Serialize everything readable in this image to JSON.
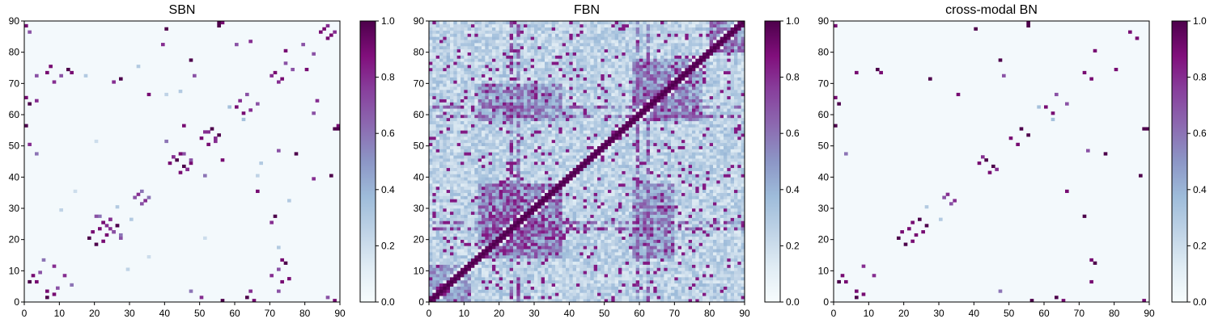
{
  "figure": {
    "colormap": "BuPu",
    "colorbar": {
      "min": 0.0,
      "max": 1.0,
      "ticks": [
        0.0,
        0.2,
        0.4,
        0.6,
        0.8,
        1.0
      ],
      "tick_labels": [
        "0.0",
        "0.2",
        "0.4",
        "0.6",
        "0.8",
        "1.0"
      ],
      "colors": [
        "#f7fcfd",
        "#e0ecf4",
        "#bfd3e6",
        "#9ebcda",
        "#8c96c6",
        "#8c6bb1",
        "#88419d",
        "#810f7c",
        "#4d004b"
      ]
    }
  },
  "chart_data": [
    {
      "type": "heatmap",
      "title": "SBN",
      "xlabel": "",
      "ylabel": "",
      "xlim": [
        0,
        90
      ],
      "ylim": [
        0,
        90
      ],
      "x_ticks": [
        0,
        10,
        20,
        30,
        40,
        50,
        60,
        70,
        80,
        90
      ],
      "x_tick_labels": [
        "0",
        "10",
        "20",
        "30",
        "40",
        "50",
        "60",
        "70",
        "80",
        "90"
      ],
      "y_ticks": [
        0,
        10,
        20,
        30,
        40,
        50,
        60,
        70,
        80,
        90
      ],
      "y_tick_labels": [
        "0",
        "10",
        "20",
        "30",
        "40",
        "50",
        "60",
        "70",
        "80",
        "90"
      ],
      "matrix_size": 90,
      "background_value": 0.02,
      "cells": [
        [
          6,
          1,
          1.0
        ],
        [
          6,
          3,
          0.9
        ],
        [
          8,
          2,
          0.9
        ],
        [
          9,
          4,
          0.7
        ],
        [
          1,
          6,
          1.0
        ],
        [
          3,
          6,
          0.9
        ],
        [
          2,
          8,
          0.9
        ],
        [
          4,
          9,
          0.7
        ],
        [
          11,
          8,
          0.8
        ],
        [
          13,
          5,
          0.6
        ],
        [
          8,
          11,
          0.8
        ],
        [
          5,
          13,
          0.6
        ],
        [
          20,
          18,
          1.0
        ],
        [
          22,
          19,
          0.9
        ],
        [
          23,
          21,
          0.9
        ],
        [
          24,
          23,
          0.8
        ],
        [
          25,
          22,
          0.9
        ],
        [
          26,
          24,
          0.8
        ],
        [
          27,
          20,
          0.7
        ],
        [
          24,
          26,
          1.0
        ],
        [
          22,
          25,
          0.7
        ],
        [
          21,
          27,
          0.6
        ],
        [
          18,
          20,
          1.0
        ],
        [
          19,
          22,
          0.9
        ],
        [
          21,
          23,
          0.9
        ],
        [
          23,
          24,
          0.8
        ],
        [
          22,
          25,
          0.9
        ],
        [
          24,
          26,
          0.8
        ],
        [
          20,
          27,
          0.7
        ],
        [
          26,
          24,
          1.0
        ],
        [
          25,
          22,
          0.7
        ],
        [
          27,
          21,
          0.6
        ],
        [
          33,
          31,
          0.7
        ],
        [
          34,
          32,
          0.8
        ],
        [
          35,
          33,
          0.6
        ],
        [
          31,
          33,
          0.7
        ],
        [
          32,
          34,
          0.8
        ],
        [
          33,
          35,
          0.6
        ],
        [
          41,
          44,
          0.9
        ],
        [
          42,
          46,
          0.8
        ],
        [
          43,
          45,
          1.0
        ],
        [
          45,
          47,
          0.7
        ],
        [
          46,
          42,
          0.8
        ],
        [
          47,
          44,
          0.9
        ],
        [
          44,
          41,
          0.9
        ],
        [
          46,
          42,
          0.8
        ],
        [
          45,
          43,
          1.0
        ],
        [
          47,
          45,
          0.7
        ],
        [
          42,
          46,
          0.8
        ],
        [
          44,
          47,
          0.9
        ],
        [
          50,
          52,
          0.9
        ],
        [
          52,
          54,
          0.8
        ],
        [
          53,
          55,
          1.0
        ],
        [
          54,
          51,
          0.8
        ],
        [
          52,
          50,
          0.9
        ],
        [
          54,
          52,
          0.8
        ],
        [
          55,
          53,
          1.0
        ],
        [
          51,
          54,
          0.8
        ],
        [
          60,
          62,
          0.9
        ],
        [
          61,
          64,
          0.8
        ],
        [
          62,
          60,
          0.9
        ],
        [
          64,
          61,
          0.8
        ],
        [
          63,
          66,
          0.7
        ],
        [
          66,
          63,
          0.7
        ],
        [
          71,
          73,
          0.9
        ],
        [
          72,
          70,
          0.8
        ],
        [
          73,
          71,
          0.9
        ],
        [
          70,
          72,
          0.8
        ],
        [
          74,
          76,
          0.7
        ],
        [
          76,
          74,
          0.7
        ],
        [
          84,
          86,
          0.9
        ],
        [
          86,
          88,
          0.8
        ],
        [
          87,
          85,
          0.9
        ],
        [
          86,
          84,
          0.9
        ],
        [
          88,
          86,
          0.8
        ],
        [
          85,
          87,
          0.9
        ],
        [
          0,
          56,
          1.0
        ],
        [
          56,
          0,
          1.0
        ],
        [
          0,
          65,
          0.9
        ],
        [
          65,
          0,
          0.9
        ],
        [
          1,
          50,
          0.8
        ],
        [
          50,
          1,
          0.8
        ],
        [
          3,
          72,
          0.7
        ],
        [
          72,
          3,
          0.7
        ],
        [
          6,
          73,
          0.9
        ],
        [
          73,
          6,
          0.9
        ],
        [
          10,
          72,
          0.7
        ],
        [
          72,
          10,
          0.7
        ],
        [
          13,
          73,
          0.9
        ],
        [
          73,
          13,
          0.9
        ],
        [
          27,
          71,
          1.0
        ],
        [
          71,
          27,
          1.0
        ],
        [
          25,
          70,
          0.8
        ],
        [
          70,
          25,
          0.8
        ],
        [
          35,
          66,
          0.9
        ],
        [
          66,
          35,
          0.9
        ],
        [
          40,
          87,
          1.0
        ],
        [
          87,
          40,
          1.0
        ],
        [
          39,
          82,
          0.8
        ],
        [
          82,
          39,
          0.8
        ],
        [
          45,
          56,
          0.9
        ],
        [
          56,
          45,
          0.9
        ],
        [
          55,
          88,
          1.0
        ],
        [
          88,
          55,
          1.0
        ],
        [
          56,
          89,
          0.9
        ],
        [
          89,
          56,
          0.9
        ],
        [
          60,
          82,
          0.7
        ],
        [
          82,
          60,
          0.7
        ],
        [
          63,
          1,
          1.0
        ],
        [
          1,
          63,
          1.0
        ],
        [
          64,
          3,
          0.8
        ],
        [
          3,
          64,
          0.8
        ],
        [
          70,
          8,
          0.8
        ],
        [
          8,
          70,
          0.8
        ],
        [
          74,
          12,
          1.0
        ],
        [
          12,
          74,
          1.0
        ],
        [
          75,
          7,
          0.9
        ],
        [
          7,
          75,
          0.9
        ],
        [
          77,
          47,
          1.0
        ],
        [
          47,
          77,
          1.0
        ],
        [
          80,
          74,
          0.9
        ],
        [
          74,
          80,
          0.9
        ],
        [
          82,
          79,
          0.7
        ],
        [
          79,
          82,
          0.7
        ],
        [
          83,
          64,
          0.8
        ],
        [
          64,
          83,
          0.8
        ],
        [
          86,
          1,
          0.7
        ],
        [
          1,
          86,
          0.7
        ],
        [
          88,
          0,
          0.9
        ],
        [
          0,
          88,
          0.9
        ],
        [
          89,
          55,
          1.0
        ],
        [
          55,
          89,
          1.0
        ],
        [
          47,
          3,
          0.6
        ],
        [
          3,
          47,
          0.6
        ],
        [
          48,
          72,
          0.7
        ],
        [
          72,
          48,
          0.7
        ],
        [
          51,
          40,
          0.6
        ],
        [
          40,
          51,
          0.6
        ],
        [
          26,
          30,
          0.3
        ],
        [
          30,
          26,
          0.3
        ],
        [
          14,
          35,
          0.2
        ],
        [
          35,
          14,
          0.2
        ],
        [
          58,
          62,
          0.35
        ],
        [
          62,
          58,
          0.35
        ],
        [
          17,
          72,
          0.3
        ],
        [
          72,
          17,
          0.3
        ],
        [
          40,
          66,
          0.25
        ],
        [
          66,
          40,
          0.25
        ],
        [
          75,
          32,
          0.3
        ],
        [
          32,
          75,
          0.3
        ],
        [
          10,
          29,
          0.25
        ],
        [
          29,
          10,
          0.25
        ],
        [
          20,
          51,
          0.2
        ],
        [
          51,
          20,
          0.2
        ],
        [
          67,
          44,
          0.3
        ],
        [
          44,
          67,
          0.3
        ]
      ]
    },
    {
      "type": "heatmap",
      "title": "FBN",
      "xlabel": "",
      "ylabel": "",
      "xlim": [
        0,
        90
      ],
      "ylim": [
        0,
        90
      ],
      "x_ticks": [
        0,
        10,
        20,
        30,
        40,
        50,
        60,
        70,
        80,
        90
      ],
      "x_tick_labels": [
        "0",
        "10",
        "20",
        "30",
        "40",
        "50",
        "60",
        "70",
        "80",
        "90"
      ],
      "y_ticks": [
        0,
        10,
        20,
        30,
        40,
        50,
        60,
        70,
        80,
        90
      ],
      "y_tick_labels": [
        "0",
        "10",
        "20",
        "30",
        "40",
        "50",
        "60",
        "70",
        "80",
        "90"
      ],
      "matrix_size": 90,
      "background_value": 0.3,
      "diagonal_value": 1.0,
      "near_diagonal_value": 0.95,
      "dense_blocks": [
        {
          "x0": 14,
          "x1": 38,
          "y0": 14,
          "y1": 38,
          "value": 0.7
        },
        {
          "x0": 58,
          "x1": 78,
          "y0": 58,
          "y1": 78,
          "value": 0.6
        },
        {
          "x0": 14,
          "x1": 38,
          "y0": 58,
          "y1": 70,
          "value": 0.55
        },
        {
          "x0": 58,
          "x1": 70,
          "y0": 14,
          "y1": 38,
          "value": 0.55
        },
        {
          "x0": 0,
          "x1": 12,
          "y0": 0,
          "y1": 12,
          "value": 0.5
        },
        {
          "x0": 80,
          "x1": 90,
          "y0": 80,
          "y1": 90,
          "value": 0.6
        }
      ],
      "row_stripes": [
        {
          "index": 23,
          "value": 0.8
        },
        {
          "index": 25,
          "value": 0.75
        },
        {
          "index": 59,
          "value": 0.75
        },
        {
          "index": 62,
          "value": 0.7
        }
      ]
    },
    {
      "type": "heatmap",
      "title": "cross-modal BN",
      "xlabel": "",
      "ylabel": "",
      "xlim": [
        0,
        90
      ],
      "ylim": [
        0,
        90
      ],
      "x_ticks": [
        0,
        10,
        20,
        30,
        40,
        50,
        60,
        70,
        80,
        90
      ],
      "x_tick_labels": [
        "0",
        "10",
        "20",
        "30",
        "40",
        "50",
        "60",
        "70",
        "80",
        "90"
      ],
      "y_ticks": [
        0,
        10,
        20,
        30,
        40,
        50,
        60,
        70,
        80,
        90
      ],
      "y_tick_labels": [
        "0",
        "10",
        "20",
        "30",
        "40",
        "50",
        "60",
        "70",
        "80",
        "90"
      ],
      "matrix_size": 90,
      "background_value": 0.02,
      "cells": [
        [
          6,
          1,
          1.0
        ],
        [
          6,
          3,
          0.9
        ],
        [
          8,
          2,
          0.9
        ],
        [
          1,
          6,
          1.0
        ],
        [
          3,
          6,
          0.9
        ],
        [
          2,
          8,
          0.9
        ],
        [
          11,
          8,
          0.8
        ],
        [
          8,
          11,
          0.8
        ],
        [
          20,
          18,
          1.0
        ],
        [
          22,
          19,
          0.9
        ],
        [
          23,
          21,
          0.9
        ],
        [
          25,
          22,
          0.9
        ],
        [
          24,
          26,
          1.0
        ],
        [
          18,
          20,
          1.0
        ],
        [
          19,
          22,
          0.9
        ],
        [
          21,
          23,
          0.9
        ],
        [
          22,
          25,
          0.9
        ],
        [
          26,
          24,
          1.0
        ],
        [
          33,
          31,
          0.7
        ],
        [
          34,
          32,
          0.8
        ],
        [
          31,
          33,
          0.7
        ],
        [
          32,
          34,
          0.8
        ],
        [
          41,
          44,
          0.9
        ],
        [
          43,
          45,
          1.0
        ],
        [
          46,
          42,
          0.8
        ],
        [
          44,
          41,
          0.9
        ],
        [
          45,
          43,
          1.0
        ],
        [
          42,
          46,
          0.8
        ],
        [
          50,
          52,
          0.9
        ],
        [
          53,
          55,
          1.0
        ],
        [
          52,
          50,
          0.9
        ],
        [
          55,
          53,
          1.0
        ],
        [
          60,
          62,
          0.9
        ],
        [
          62,
          60,
          0.9
        ],
        [
          63,
          66,
          0.7
        ],
        [
          66,
          63,
          0.7
        ],
        [
          71,
          73,
          0.9
        ],
        [
          73,
          71,
          0.9
        ],
        [
          84,
          86,
          0.9
        ],
        [
          86,
          84,
          0.9
        ],
        [
          0,
          56,
          1.0
        ],
        [
          56,
          0,
          1.0
        ],
        [
          0,
          65,
          0.9
        ],
        [
          65,
          0,
          0.9
        ],
        [
          6,
          73,
          0.9
        ],
        [
          73,
          6,
          0.9
        ],
        [
          13,
          73,
          0.9
        ],
        [
          73,
          13,
          0.9
        ],
        [
          27,
          71,
          1.0
        ],
        [
          71,
          27,
          1.0
        ],
        [
          35,
          66,
          0.9
        ],
        [
          66,
          35,
          0.9
        ],
        [
          40,
          87,
          1.0
        ],
        [
          87,
          40,
          1.0
        ],
        [
          55,
          88,
          1.0
        ],
        [
          88,
          55,
          1.0
        ],
        [
          63,
          1,
          1.0
        ],
        [
          1,
          63,
          1.0
        ],
        [
          74,
          12,
          1.0
        ],
        [
          12,
          74,
          1.0
        ],
        [
          77,
          47,
          1.0
        ],
        [
          47,
          77,
          1.0
        ],
        [
          80,
          74,
          0.9
        ],
        [
          74,
          80,
          0.9
        ],
        [
          88,
          0,
          0.9
        ],
        [
          0,
          88,
          0.9
        ],
        [
          89,
          55,
          1.0
        ],
        [
          55,
          89,
          1.0
        ],
        [
          47,
          3,
          0.6
        ],
        [
          3,
          47,
          0.6
        ],
        [
          48,
          72,
          0.7
        ],
        [
          72,
          48,
          0.7
        ],
        [
          26,
          30,
          0.3
        ],
        [
          30,
          26,
          0.3
        ],
        [
          58,
          62,
          0.35
        ],
        [
          62,
          58,
          0.35
        ]
      ]
    }
  ]
}
